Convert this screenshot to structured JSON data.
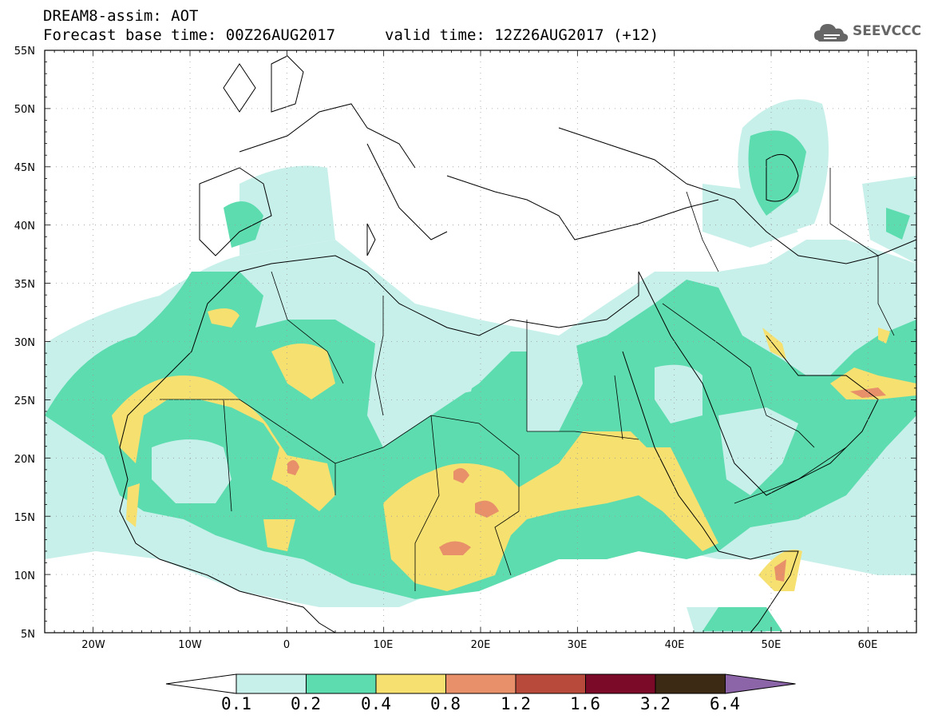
{
  "header": {
    "title": "DREAM8-assim: AOT",
    "base_time": "Forecast base time: 00Z26AUG2017",
    "valid_time": "valid time: 12Z26AUG2017 (+12)",
    "logo_text": "SEEVCCC"
  },
  "map": {
    "lon_range": [
      -25,
      65
    ],
    "lat_range": [
      5,
      55
    ],
    "lat_labels": [
      "55N",
      "50N",
      "45N",
      "40N",
      "35N",
      "30N",
      "25N",
      "20N",
      "15N",
      "10N",
      "5N"
    ],
    "lon_labels": [
      "20W",
      "10W",
      "0",
      "10E",
      "20E",
      "30E",
      "40E",
      "50E",
      "60E"
    ]
  },
  "colorbar": {
    "labels": [
      "0.1",
      "0.2",
      "0.4",
      "0.8",
      "1.2",
      "1.6",
      "3.2",
      "6.4"
    ],
    "colors": [
      "#ffffff",
      "#c8f0ea",
      "#5ddcaf",
      "#f5e070",
      "#e8906a",
      "#b84a3c",
      "#7a0a28",
      "#3d2a14",
      "#8c64a8"
    ]
  }
}
